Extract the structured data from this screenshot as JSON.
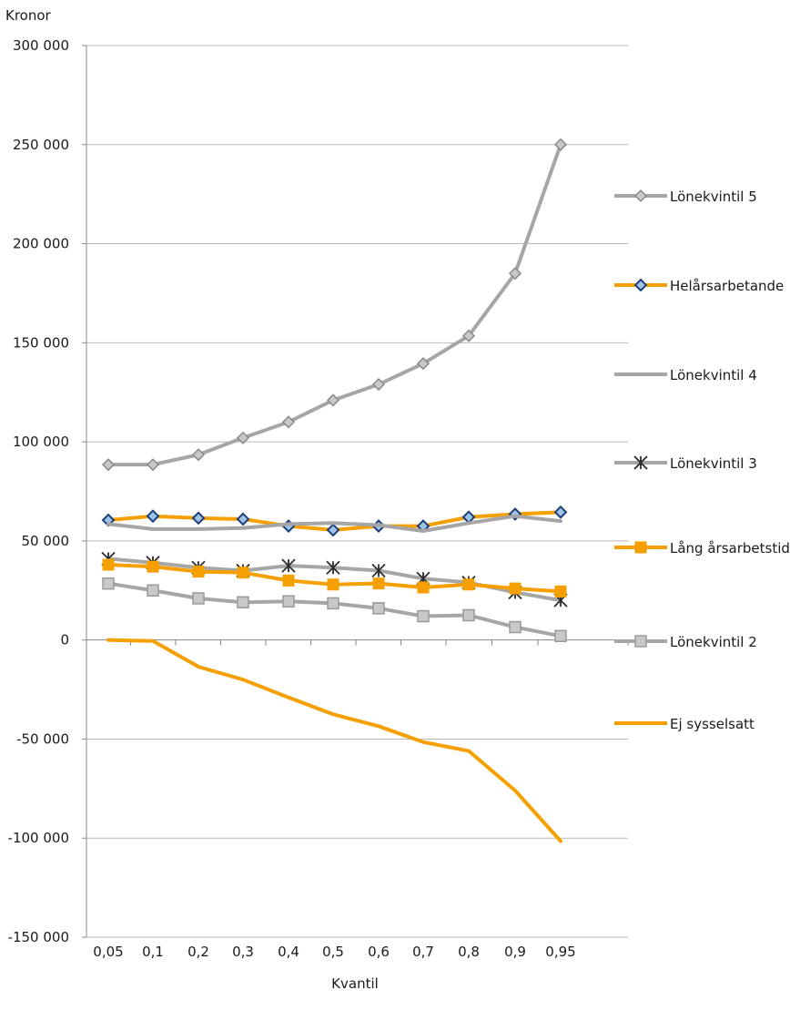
{
  "chart_data": {
    "type": "line",
    "ylabel": "Kronor",
    "xlabel": "Kvantil",
    "categories": [
      "0,05",
      "0,1",
      "0,2",
      "0,3",
      "0,4",
      "0,5",
      "0,6",
      "0,7",
      "0,8",
      "0,9",
      "0,95"
    ],
    "y_ticks": [
      300000,
      250000,
      200000,
      150000,
      100000,
      50000,
      0,
      -50000,
      -100000,
      -150000
    ],
    "y_tick_labels": [
      "300 000",
      "250 000",
      "200 000",
      "150 000",
      "100 000",
      "50 000",
      "0",
      "-50 000",
      "-100 000",
      "-150 000"
    ],
    "ylim": [
      -150000,
      300000
    ],
    "grid": "horizontal",
    "legend": "right",
    "series": [
      {
        "name": "Lönekvintil 5",
        "color": "#a6a6a6",
        "marker": "diamond",
        "values": [
          88500,
          88500,
          93500,
          102000,
          110000,
          121000,
          129000,
          139500,
          153500,
          185000,
          250000
        ]
      },
      {
        "name": "Helårsarbetande",
        "color": "#f5a000",
        "marker": "diamond-blue",
        "values": [
          60500,
          62500,
          61500,
          61000,
          57500,
          55500,
          57500,
          57500,
          62000,
          63500,
          64500
        ]
      },
      {
        "name": "Lönekvintil 4",
        "color": "#a6a6a6",
        "marker": "none",
        "values": [
          58500,
          56000,
          56000,
          56500,
          58500,
          59000,
          58000,
          55000,
          59000,
          62500,
          60000
        ]
      },
      {
        "name": "Lönekvintil 3",
        "color": "#a6a6a6",
        "marker": "star",
        "values": [
          41000,
          39000,
          36500,
          35000,
          37500,
          36500,
          35000,
          31000,
          29000,
          24000,
          20000
        ]
      },
      {
        "name": "Lång årsarbetstid",
        "color": "#f5a000",
        "marker": "square-orange",
        "values": [
          38000,
          37000,
          34500,
          34000,
          30000,
          28000,
          28500,
          26500,
          28000,
          26000,
          24500
        ]
      },
      {
        "name": "Lönekvintil 2",
        "color": "#a6a6a6",
        "marker": "square-gray",
        "values": [
          28500,
          25000,
          21000,
          19000,
          19500,
          18500,
          16000,
          12000,
          12500,
          6500,
          2000
        ]
      },
      {
        "name": "Ej sysselsatt",
        "color": "#f5a000",
        "marker": "none",
        "values": [
          0,
          -500,
          -13500,
          -20000,
          -29000,
          -37500,
          -43500,
          -51500,
          -56000,
          -76000,
          -101500
        ]
      }
    ]
  }
}
